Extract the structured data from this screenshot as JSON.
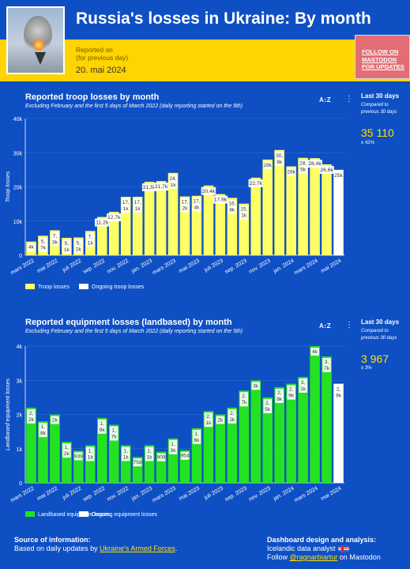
{
  "header": {
    "title": "Russia's losses in Ukraine:  By month",
    "reported_line1": "Reported on",
    "reported_line2": "(for previous day)",
    "reported_date": "20. mai 2024",
    "follow_line1": "FOLLOW ON",
    "follow_line2": "MASTODON",
    "follow_line3": "FOR UPDATES"
  },
  "troop": {
    "title": "Reported troop losses by month",
    "subtitle": "Excluding February and the first 5 days of March 2022 (daily reporting started on the 5th)",
    "sort_label": "A↕Z",
    "side_heading": "Last 30 days",
    "side_sub1": "Compared to",
    "side_sub2": "previous 30 days",
    "side_value": "35 110",
    "side_change": "± 42%"
  },
  "equipment": {
    "title": "Reported equipment losses (landbased) by month",
    "subtitle": "Excluding February and the first 5 days of March 2022 (daily reporting started on the 5th)",
    "sort_label": "A↕Z",
    "side_heading": "Last 30 days",
    "side_sub1": "Compared to",
    "side_sub2": "previous 30 days",
    "side_value": "3 967",
    "side_change": "± 3%"
  },
  "footer": {
    "source_title": "Source of information:",
    "source_text": "Based on daily updates by",
    "source_link": "Ukraine's Armed Forces",
    "source_end": ".",
    "design_title": "Dashboard design and analysis:",
    "design_text": "Icelandic data analyst",
    "follow_text": "Follow",
    "follow_link": "@ragnarbiartur",
    "follow_end": "on Mastodon"
  },
  "colors": {
    "background": "#0f4fc4",
    "accent_yellow": "#ffd400",
    "troop_bar": "#ffff66",
    "equipment_bar": "#22e222",
    "ongoing_bar": "#ffffff",
    "follow_button": "#e26d74"
  },
  "chart_data": [
    {
      "type": "bar",
      "ylabel": "Troop losses",
      "xlabel": "",
      "ylim": [
        0,
        40000
      ],
      "yticks": [
        "0",
        "10k",
        "20k",
        "30k",
        "40k"
      ],
      "grid": true,
      "legend": "bottom-left",
      "categories": [
        "mars 2022",
        "apr. 2022",
        "mai 2022",
        "jun. 2022",
        "juli 2022",
        "aug. 2022",
        "sep. 2022",
        "okt. 2022",
        "nov. 2022",
        "des. 2022",
        "jan. 2023",
        "feb. 2023",
        "mars 2023",
        "apr. 2023",
        "mai 2023",
        "jun. 2023",
        "juli 2023",
        "aug. 2023",
        "sep. 2023",
        "okt. 2023",
        "nov. 2023",
        "des. 2023",
        "jan. 2024",
        "feb. 2024",
        "mars 2024",
        "apr. 2024",
        "mai 2024"
      ],
      "tick_labels": [
        "mars 2022",
        "mai 2022",
        "juli 2022",
        "sep. 2022",
        "nov. 2022",
        "jan. 2023",
        "mars 2023",
        "mai 2023",
        "juli 2023",
        "sep. 2023",
        "nov. 2023",
        "jan. 2024",
        "mars 2024",
        "mai 2024"
      ],
      "series": [
        {
          "name": "Troop losses",
          "values": [
            4000,
            5700,
            7300,
            5100,
            5200,
            7100,
            11200,
            12700,
            17100,
            17100,
            21500,
            21700,
            24100,
            17200,
            17400,
            20400,
            17900,
            16800,
            15100,
            22700,
            28000,
            30800,
            26000,
            28500,
            28400,
            26600,
            null
          ],
          "labels": [
            "4k",
            "5,\n7k",
            "7,\n3k",
            "5,\n1k",
            "5,\n2k",
            "7,\n1k",
            "11,2k",
            "12,7k",
            "17,\n1k",
            "17,\n1k",
            "21,5k",
            "21,7k",
            "24,\n1k",
            "17,\n2k",
            "17,\n4k",
            "20,4k",
            "17,9k",
            "16,\n8k",
            "15,\n1k",
            "22,7k",
            "28k",
            "30,\n8k",
            "26k",
            "28,\n5k",
            "28,4k",
            "26,6k",
            ""
          ]
        },
        {
          "name": "Ongoing troop losses",
          "values": [
            null,
            null,
            null,
            null,
            null,
            null,
            null,
            null,
            null,
            null,
            null,
            null,
            null,
            null,
            null,
            null,
            null,
            null,
            null,
            null,
            null,
            null,
            null,
            null,
            null,
            null,
            25000
          ],
          "labels": [
            "",
            "",
            "",
            "",
            "",
            "",
            "",
            "",
            "",
            "",
            "",
            "",
            "",
            "",
            "",
            "",
            "",
            "",
            "",
            "",
            "",
            "",
            "",
            "",
            "",
            "",
            "25k"
          ]
        }
      ]
    },
    {
      "type": "bar",
      "ylabel": "Landbased equipment losses",
      "xlabel": "",
      "ylim": [
        0,
        4000
      ],
      "yticks": [
        "0",
        "1k",
        "2k",
        "3k",
        "4k"
      ],
      "grid": true,
      "legend": "bottom-left",
      "categories": [
        "mars 2022",
        "apr. 2022",
        "mai 2022",
        "jun. 2022",
        "juli 2022",
        "aug. 2022",
        "sep. 2022",
        "okt. 2022",
        "nov. 2022",
        "des. 2022",
        "jan. 2023",
        "feb. 2023",
        "mars 2023",
        "apr. 2023",
        "mai 2023",
        "jun. 2023",
        "juli 2023",
        "aug. 2023",
        "sep. 2023",
        "okt. 2023",
        "nov. 2023",
        "des. 2023",
        "jan. 2024",
        "feb. 2024",
        "mars 2024",
        "apr. 2024",
        "mai 2024"
      ],
      "tick_labels": [
        "mars 2022",
        "mai 2022",
        "juli 2022",
        "sep. 2022",
        "nov. 2022",
        "jan. 2023",
        "mars 2023",
        "mai 2023",
        "juli 2023",
        "sep. 2023",
        "nov. 2023",
        "jan. 2024",
        "mars 2024",
        "mai 2024"
      ],
      "series": [
        {
          "name": "Landbased equipment losses",
          "values": [
            2200,
            1800,
            2000,
            1200,
            939,
            1100,
            1900,
            1700,
            1100,
            758,
            1100,
            909,
            1300,
            954,
            1600,
            2100,
            2000,
            2200,
            2700,
            3000,
            2500,
            2800,
            2900,
            3100,
            4000,
            3700,
            null
          ],
          "labels": [
            "2,\n2k",
            "1,\n8k",
            "2k",
            "1,\n2k",
            "939",
            "1,\n1k",
            "1,\n9k",
            "1,\n7k",
            "1,\n1k",
            "758",
            "1,\n1k",
            "909",
            "1,\n3k",
            "954",
            "1,\n6k",
            "2,\n1k",
            "2k",
            "2,\n2k",
            "2,\n7k",
            "3k",
            "2,\n5k",
            "2,\n8k",
            "2,\n9k",
            "3,\n1k",
            "4k",
            "3,\n7k",
            ""
          ]
        },
        {
          "name": "Ongoing equipment losses",
          "values": [
            null,
            null,
            null,
            null,
            null,
            null,
            null,
            null,
            null,
            null,
            null,
            null,
            null,
            null,
            null,
            null,
            null,
            null,
            null,
            null,
            null,
            null,
            null,
            null,
            null,
            null,
            2900
          ],
          "labels": [
            "",
            "",
            "",
            "",
            "",
            "",
            "",
            "",
            "",
            "",
            "",
            "",
            "",
            "",
            "",
            "",
            "",
            "",
            "",
            "",
            "",
            "",
            "",
            "",
            "",
            "",
            "2,\n9k"
          ]
        }
      ]
    }
  ]
}
